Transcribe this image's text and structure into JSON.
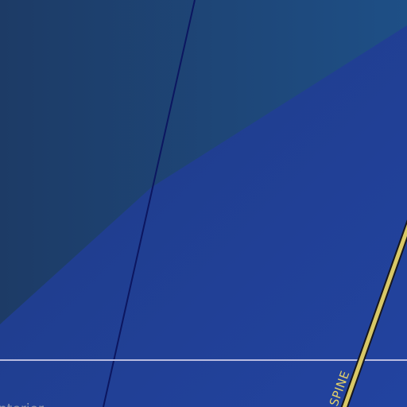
{
  "map": {
    "colors": {
      "land": "#21418f",
      "water": "#1e4676",
      "water_edge": "#1c4a80",
      "minor_road": "#0c1660",
      "major_road_fill": "#d8c866",
      "major_road_casing": "#1a1a22",
      "boundary": "#b9bce0",
      "road_label": "#e3d06a",
      "area_label": "#8a95ad"
    },
    "labels": {
      "road": "SPINE",
      "area": "nterior"
    }
  }
}
